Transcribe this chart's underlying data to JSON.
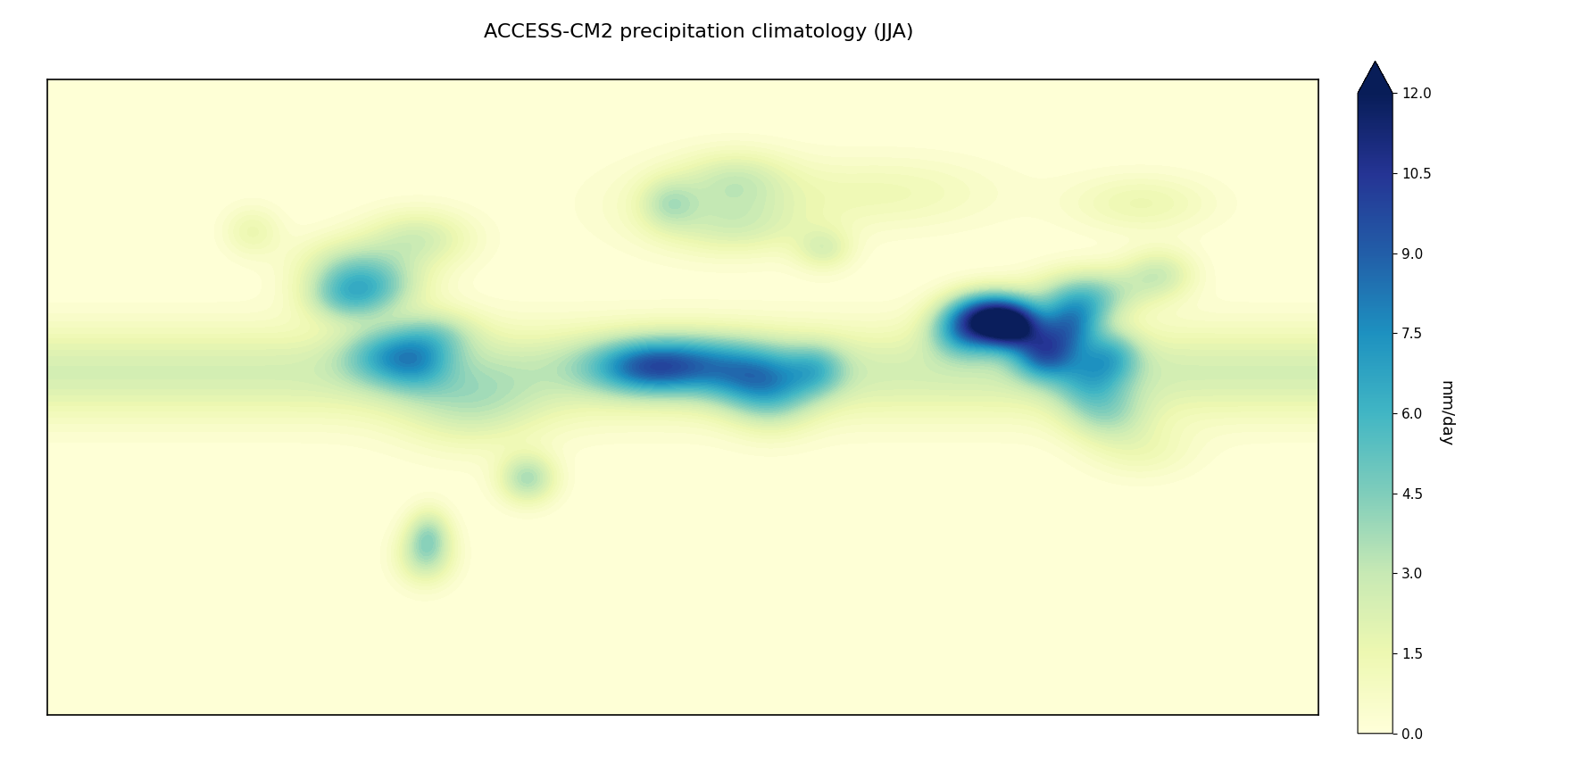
{
  "title": "ACCESS-CM2 precipitation climatology (JJA)",
  "colorbar_label": "mm/day",
  "vmin": 0.0,
  "vmax": 12.0,
  "colorbar_ticks": [
    0.0,
    1.5,
    3.0,
    4.5,
    6.0,
    7.5,
    9.0,
    10.5,
    12.0
  ],
  "colorbar_ticklabels": [
    "0.0",
    "1.5",
    "3.0",
    "4.5",
    "6.0",
    "7.5",
    "9.0",
    "10.5",
    "12.0"
  ],
  "cmap": "YlGnBu",
  "figsize": [
    17.79,
    8.56
  ],
  "dpi": 100,
  "title_fontsize": 16,
  "ocean_color": "white",
  "land_edge_color": "black",
  "land_edge_width": 0.5
}
